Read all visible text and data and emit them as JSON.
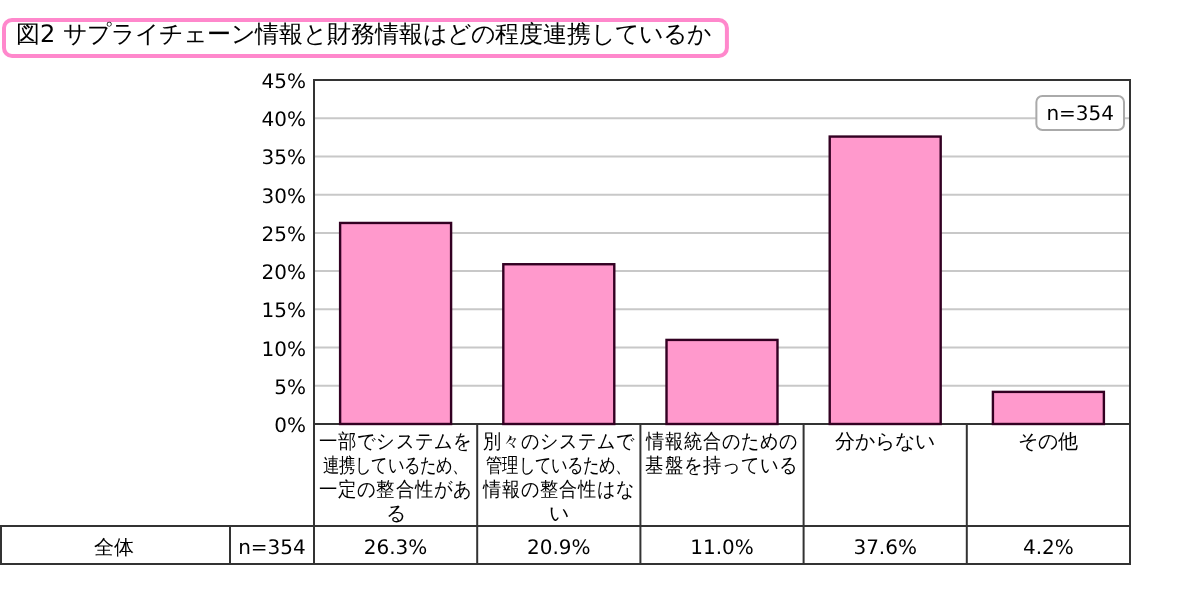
{
  "chart_data": {
    "type": "bar",
    "title": "図2 サプライチェーン情報と財務情報はどの程度連携しているか",
    "categories": [
      "一部でシステムを連携しているため、一定の整合性がある",
      "別々のシステムで管理しているため、情報の整合性はない",
      "情報統合のための基盤を持っている",
      "分からない",
      "その他"
    ],
    "values": [
      26.3,
      20.9,
      11.0,
      37.6,
      4.2
    ],
    "value_labels": [
      "26.3%",
      "20.9%",
      "11.0%",
      "37.6%",
      "4.2%"
    ],
    "color": "#ff99cc",
    "ylim": [
      0,
      45
    ],
    "yticks": [
      {
        "value": 0,
        "label": "0%"
      },
      {
        "value": 5,
        "label": "5%"
      },
      {
        "value": 10,
        "label": "10%"
      },
      {
        "value": 15,
        "label": "15%"
      },
      {
        "value": 20,
        "label": "20%"
      },
      {
        "value": 25,
        "label": "25%"
      },
      {
        "value": 30,
        "label": "30%"
      },
      {
        "value": 35,
        "label": "35%"
      },
      {
        "value": 40,
        "label": "40%"
      },
      {
        "value": 45,
        "label": "45%"
      }
    ],
    "grid": "y",
    "annotations": [
      "n=354",
      "全体",
      "n=354"
    ]
  }
}
